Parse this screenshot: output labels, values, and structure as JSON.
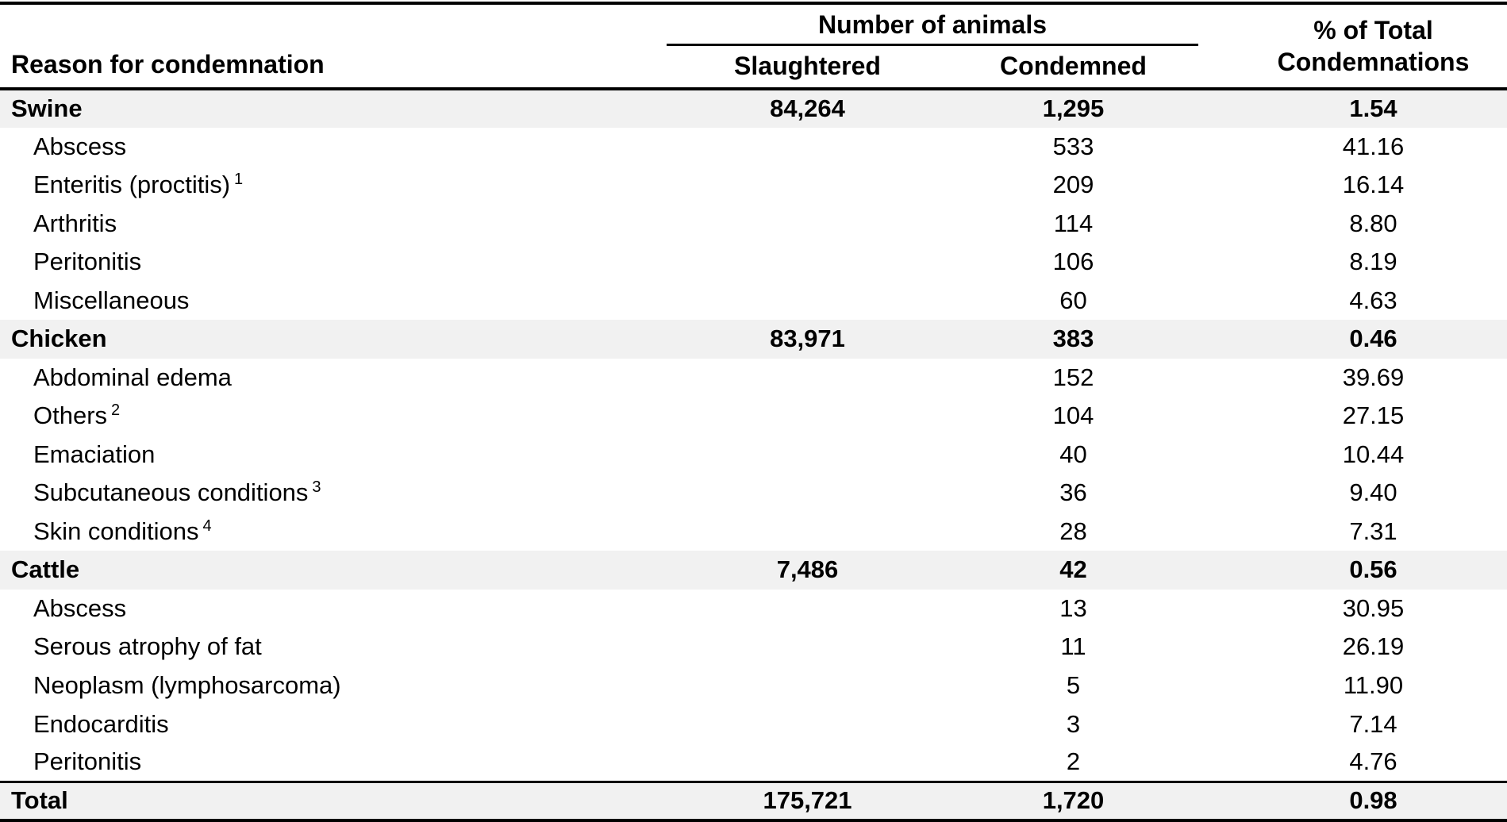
{
  "header": {
    "reason": "Reason for condemnation",
    "number_of_animals": "Number of animals",
    "slaughtered": "Slaughtered",
    "condemned": "Condemned",
    "pct_line1": "% of Total",
    "pct_line2": "Condemnations"
  },
  "colors": {
    "band": "#f1f1f1",
    "rule": "#000000",
    "text": "#000000",
    "background": "#ffffff"
  },
  "rows": [
    {
      "kind": "species",
      "reason": "Swine",
      "footnote": "",
      "slaughtered": "84,264",
      "condemned": "1,295",
      "pct": "1.54"
    },
    {
      "kind": "detail",
      "reason": "Abscess",
      "footnote": "",
      "slaughtered": "",
      "condemned": "533",
      "pct": "41.16"
    },
    {
      "kind": "detail",
      "reason": "Enteritis (proctitis)",
      "footnote": "1",
      "slaughtered": "",
      "condemned": "209",
      "pct": "16.14"
    },
    {
      "kind": "detail",
      "reason": "Arthritis",
      "footnote": "",
      "slaughtered": "",
      "condemned": "114",
      "pct": "8.80"
    },
    {
      "kind": "detail",
      "reason": "Peritonitis",
      "footnote": "",
      "slaughtered": "",
      "condemned": "106",
      "pct": "8.19"
    },
    {
      "kind": "detail",
      "reason": "Miscellaneous",
      "footnote": "",
      "slaughtered": "",
      "condemned": "60",
      "pct": "4.63"
    },
    {
      "kind": "species",
      "reason": "Chicken",
      "footnote": "",
      "slaughtered": "83,971",
      "condemned": "383",
      "pct": "0.46"
    },
    {
      "kind": "detail",
      "reason": "Abdominal edema",
      "footnote": "",
      "slaughtered": "",
      "condemned": "152",
      "pct": "39.69"
    },
    {
      "kind": "detail",
      "reason": "Others",
      "footnote": "2",
      "slaughtered": "",
      "condemned": "104",
      "pct": "27.15"
    },
    {
      "kind": "detail",
      "reason": "Emaciation",
      "footnote": "",
      "slaughtered": "",
      "condemned": "40",
      "pct": "10.44"
    },
    {
      "kind": "detail",
      "reason": "Subcutaneous conditions",
      "footnote": "3",
      "slaughtered": "",
      "condemned": "36",
      "pct": "9.40"
    },
    {
      "kind": "detail",
      "reason": "Skin conditions",
      "footnote": "4",
      "slaughtered": "",
      "condemned": "28",
      "pct": "7.31"
    },
    {
      "kind": "species",
      "reason": "Cattle",
      "footnote": "",
      "slaughtered": "7,486",
      "condemned": "42",
      "pct": "0.56"
    },
    {
      "kind": "detail",
      "reason": "Abscess",
      "footnote": "",
      "slaughtered": "",
      "condemned": "13",
      "pct": "30.95"
    },
    {
      "kind": "detail",
      "reason": "Serous atrophy of fat",
      "footnote": "",
      "slaughtered": "",
      "condemned": "11",
      "pct": "26.19"
    },
    {
      "kind": "detail",
      "reason": "Neoplasm (lymphosarcoma)",
      "footnote": "",
      "slaughtered": "",
      "condemned": "5",
      "pct": "11.90"
    },
    {
      "kind": "detail",
      "reason": "Endocarditis",
      "footnote": "",
      "slaughtered": "",
      "condemned": "3",
      "pct": "7.14"
    },
    {
      "kind": "detail",
      "reason": "Peritonitis",
      "footnote": "",
      "slaughtered": "",
      "condemned": "2",
      "pct": "4.76"
    },
    {
      "kind": "total",
      "reason": "Total",
      "footnote": "",
      "slaughtered": "175,721",
      "condemned": "1,720",
      "pct": "0.98"
    }
  ]
}
